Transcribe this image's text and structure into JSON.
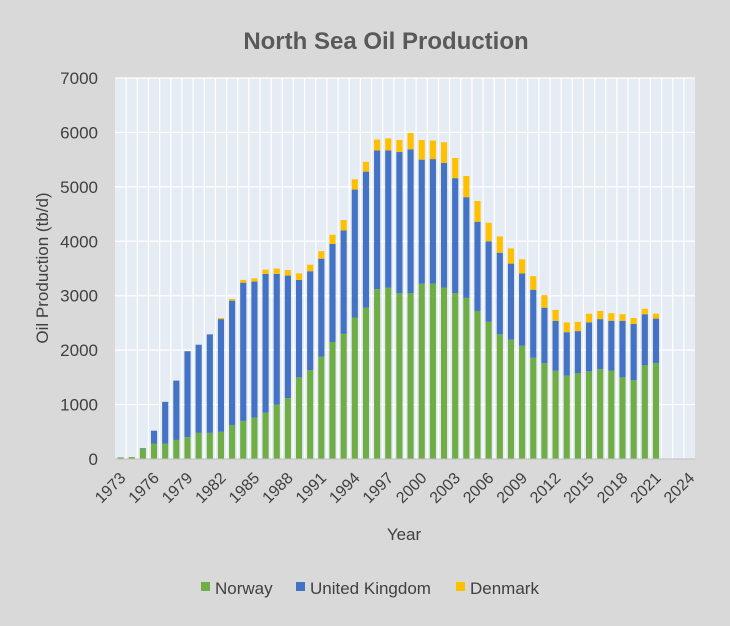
{
  "chart_data": {
    "type": "bar",
    "stacked": true,
    "title": "North Sea Oil Production",
    "xlabel": "Year",
    "ylabel": "Oil Production (tb/d)",
    "ylim": [
      0,
      7000
    ],
    "yticks": [
      0,
      1000,
      2000,
      3000,
      4000,
      5000,
      6000,
      7000
    ],
    "xlim": [
      1973,
      2024
    ],
    "xticks": [
      1973,
      1976,
      1979,
      1982,
      1985,
      1988,
      1991,
      1994,
      1997,
      2000,
      2003,
      2006,
      2009,
      2012,
      2015,
      2018,
      2021,
      2024
    ],
    "grid": true,
    "legend": "bottom",
    "years": [
      1973,
      1974,
      1975,
      1976,
      1977,
      1978,
      1979,
      1980,
      1981,
      1982,
      1983,
      1984,
      1985,
      1986,
      1987,
      1988,
      1989,
      1990,
      1991,
      1992,
      1993,
      1994,
      1995,
      1996,
      1997,
      1998,
      1999,
      2000,
      2001,
      2002,
      2003,
      2004,
      2005,
      2006,
      2007,
      2008,
      2009,
      2010,
      2011,
      2012,
      2013,
      2014,
      2015,
      2016,
      2017,
      2018,
      2019,
      2020,
      2021
    ],
    "series": [
      {
        "name": "Norway",
        "color": "#70ad47",
        "values": [
          30,
          35,
          190,
          280,
          280,
          350,
          400,
          480,
          480,
          500,
          620,
          700,
          760,
          850,
          1000,
          1120,
          1500,
          1630,
          1880,
          2150,
          2300,
          2600,
          2780,
          3120,
          3150,
          3050,
          3050,
          3220,
          3220,
          3150,
          3050,
          2960,
          2720,
          2520,
          2290,
          2190,
          2080,
          1860,
          1760,
          1620,
          1530,
          1580,
          1610,
          1650,
          1620,
          1500,
          1450,
          1720,
          1760
        ]
      },
      {
        "name": "United Kingdom",
        "color": "#4472c4",
        "values": [
          0,
          0,
          10,
          240,
          770,
          1090,
          1580,
          1620,
          1810,
          2070,
          2290,
          2540,
          2500,
          2550,
          2400,
          2250,
          1790,
          1820,
          1800,
          1800,
          1900,
          2350,
          2500,
          2550,
          2520,
          2590,
          2640,
          2280,
          2290,
          2290,
          2110,
          1850,
          1640,
          1480,
          1500,
          1400,
          1330,
          1250,
          1020,
          920,
          800,
          770,
          900,
          920,
          920,
          1040,
          1030,
          940,
          820
        ]
      },
      {
        "name": "Denmark",
        "color": "#ffc000",
        "values": [
          0,
          0,
          0,
          0,
          0,
          0,
          0,
          0,
          0,
          20,
          30,
          50,
          60,
          80,
          100,
          100,
          120,
          120,
          140,
          170,
          190,
          190,
          180,
          200,
          220,
          220,
          300,
          360,
          340,
          380,
          370,
          390,
          380,
          340,
          300,
          280,
          260,
          250,
          230,
          200,
          180,
          170,
          160,
          150,
          140,
          120,
          110,
          100,
          90
        ]
      }
    ]
  }
}
